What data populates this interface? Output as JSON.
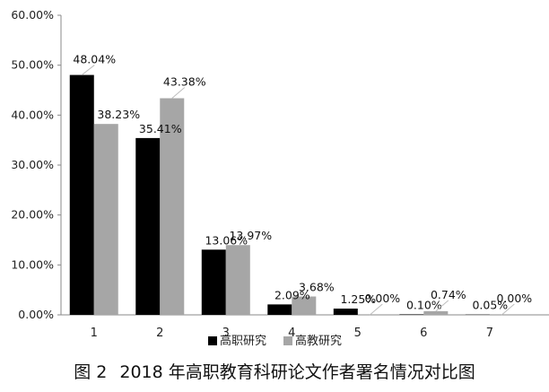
{
  "figure": {
    "caption_label": "图 2",
    "caption_text": "2018 年高职教育科研论文作者署名情况对比图"
  },
  "chart_data": {
    "type": "bar",
    "categories": [
      "1",
      "2",
      "3",
      "4",
      "5",
      "6",
      "7"
    ],
    "series": [
      {
        "name": "高职研究",
        "color": "#000000",
        "values": [
          48.04,
          35.41,
          13.06,
          2.09,
          1.25,
          0.1,
          0.05
        ],
        "labels": [
          "48.04%",
          "35.41%",
          "13.06%",
          "2.09%",
          "1.25%",
          "0.10%",
          "0.05%"
        ]
      },
      {
        "name": "高教研究",
        "color": "#a6a6a6",
        "values": [
          38.23,
          43.38,
          13.97,
          3.68,
          0.0,
          0.74,
          0.0
        ],
        "labels": [
          "38.23%",
          "43.38%",
          "13.97%",
          "3.68%",
          "0.00%",
          "0.74%",
          "0.00%"
        ]
      }
    ],
    "y_ticks": [
      "0.00%",
      "10.00%",
      "20.00%",
      "30.00%",
      "40.00%",
      "50.00%",
      "60.00%"
    ],
    "ylim": [
      0,
      60
    ],
    "xlabel": "",
    "ylabel": "",
    "grid": false,
    "legend_position": "bottom"
  }
}
